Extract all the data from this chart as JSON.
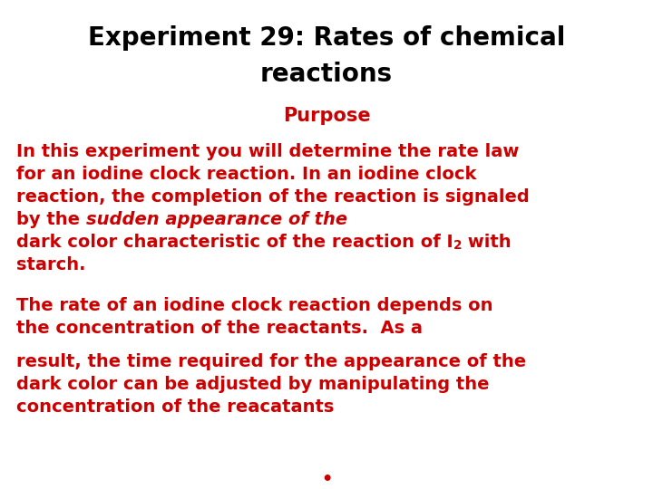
{
  "title_line1": "Experiment 29: Rates of chemical",
  "title_line2": "reactions",
  "title_color": "#000000",
  "title_fontsize": 20,
  "title_fontweight": "bold",
  "section_header": "Purpose",
  "section_header_color": "#cc0000",
  "section_header_fontsize": 15,
  "section_header_fontweight": "bold",
  "para1_line1": "In this experiment you will determine the rate law",
  "para1_line2": "for an iodine clock reaction. In an iodine clock",
  "para1_line3": "reaction, the completion of the reaction is signaled",
  "para1_line4_normal": "by the ",
  "para1_line4_italic": "sudden appearance of the",
  "para1_line5_before": "dark color characteristic of the reaction of I",
  "para1_line5_sub": "2",
  "para1_line5_after": " with",
  "para1_line6": "starch.",
  "para2_line1": "The rate of an iodine clock reaction depends on",
  "para2_line2": "the concentration of the reactants.  As a",
  "para2_line3": "result, the time required for the appearance of the",
  "para2_line4": "dark color can be adjusted by manipulating the",
  "para2_line5": "concentration of the reacatants",
  "body_color": "#cc0000",
  "body_fontsize": 14,
  "body_fontweight": "bold",
  "background_color": "#ffffff",
  "bullet": "•"
}
